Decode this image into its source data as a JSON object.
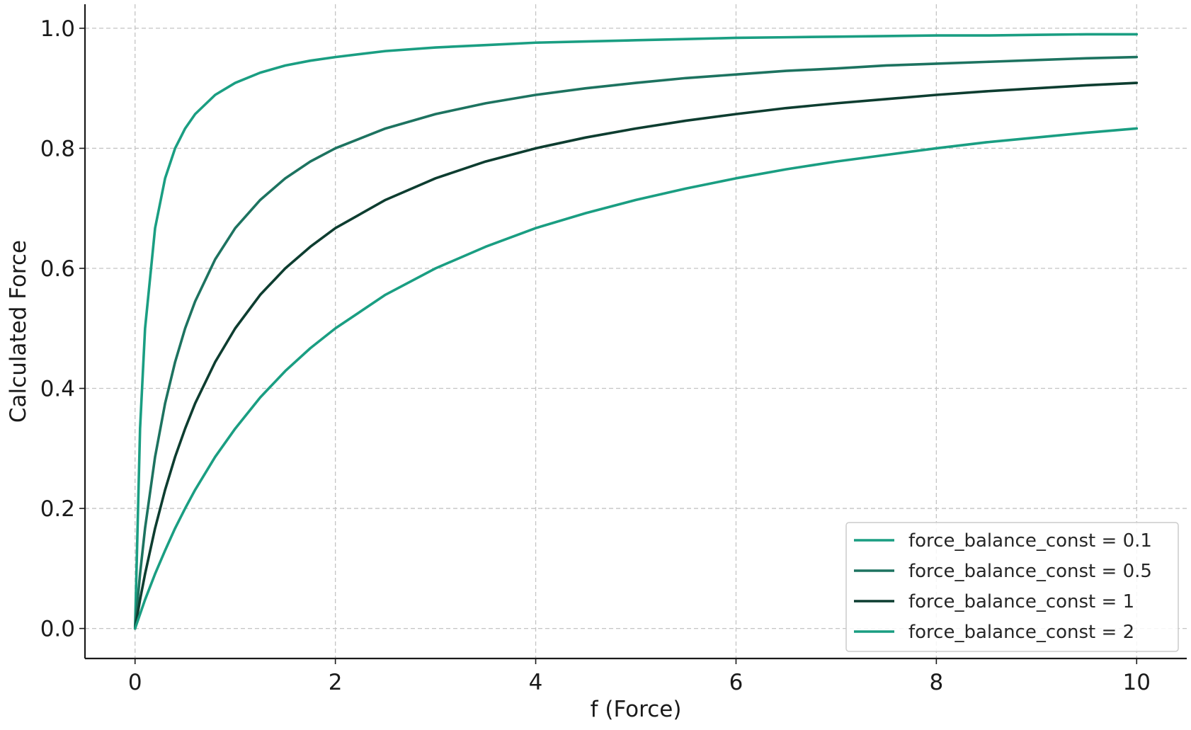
{
  "chart_data": {
    "type": "line",
    "title": "",
    "xlabel": "f (Force)",
    "ylabel": "Calculated Force",
    "xlim": [
      -0.5,
      10.5
    ],
    "ylim": [
      -0.05,
      1.04
    ],
    "xticks": [
      0,
      2,
      4,
      6,
      8,
      10
    ],
    "xtick_labels": [
      "0",
      "2",
      "4",
      "6",
      "8",
      "10"
    ],
    "yticks": [
      0.0,
      0.2,
      0.4,
      0.6,
      0.8,
      1.0
    ],
    "ytick_labels": [
      "0.0",
      "0.2",
      "0.4",
      "0.6",
      "0.8",
      "1.0"
    ],
    "grid": true,
    "legend_position": "bottom-right",
    "x": [
      0,
      0.05,
      0.1,
      0.2,
      0.3,
      0.4,
      0.5,
      0.6,
      0.8,
      1.0,
      1.25,
      1.5,
      1.75,
      2.0,
      2.5,
      3.0,
      3.5,
      4.0,
      4.5,
      5.0,
      5.5,
      6.0,
      6.5,
      7.0,
      7.5,
      8.0,
      8.5,
      9.0,
      9.5,
      10.0
    ],
    "series": [
      {
        "name": "force_balance_const = 0.1",
        "color": "#1a9e82",
        "values": [
          0.0,
          0.333,
          0.5,
          0.667,
          0.75,
          0.8,
          0.833,
          0.857,
          0.889,
          0.909,
          0.926,
          0.938,
          0.946,
          0.952,
          0.962,
          0.968,
          0.972,
          0.976,
          0.978,
          0.98,
          0.982,
          0.984,
          0.985,
          0.986,
          0.987,
          0.988,
          0.988,
          0.989,
          0.99,
          0.99
        ]
      },
      {
        "name": "force_balance_const = 0.5",
        "color": "#1d7360",
        "values": [
          0.0,
          0.091,
          0.167,
          0.286,
          0.375,
          0.444,
          0.5,
          0.545,
          0.615,
          0.667,
          0.714,
          0.75,
          0.778,
          0.8,
          0.833,
          0.857,
          0.875,
          0.889,
          0.9,
          0.909,
          0.917,
          0.923,
          0.929,
          0.933,
          0.938,
          0.941,
          0.944,
          0.947,
          0.95,
          0.952
        ]
      },
      {
        "name": "force_balance_const = 1",
        "color": "#0d3d30",
        "values": [
          0.0,
          0.048,
          0.091,
          0.167,
          0.231,
          0.286,
          0.333,
          0.375,
          0.444,
          0.5,
          0.556,
          0.6,
          0.636,
          0.667,
          0.714,
          0.75,
          0.778,
          0.8,
          0.818,
          0.833,
          0.846,
          0.857,
          0.867,
          0.875,
          0.882,
          0.889,
          0.895,
          0.9,
          0.905,
          0.909
        ]
      },
      {
        "name": "force_balance_const = 2",
        "color": "#1a9e82",
        "values": [
          0.0,
          0.024,
          0.048,
          0.091,
          0.13,
          0.167,
          0.2,
          0.231,
          0.286,
          0.333,
          0.385,
          0.429,
          0.467,
          0.5,
          0.556,
          0.6,
          0.636,
          0.667,
          0.692,
          0.714,
          0.733,
          0.75,
          0.765,
          0.778,
          0.789,
          0.8,
          0.81,
          0.818,
          0.826,
          0.833
        ]
      }
    ]
  }
}
